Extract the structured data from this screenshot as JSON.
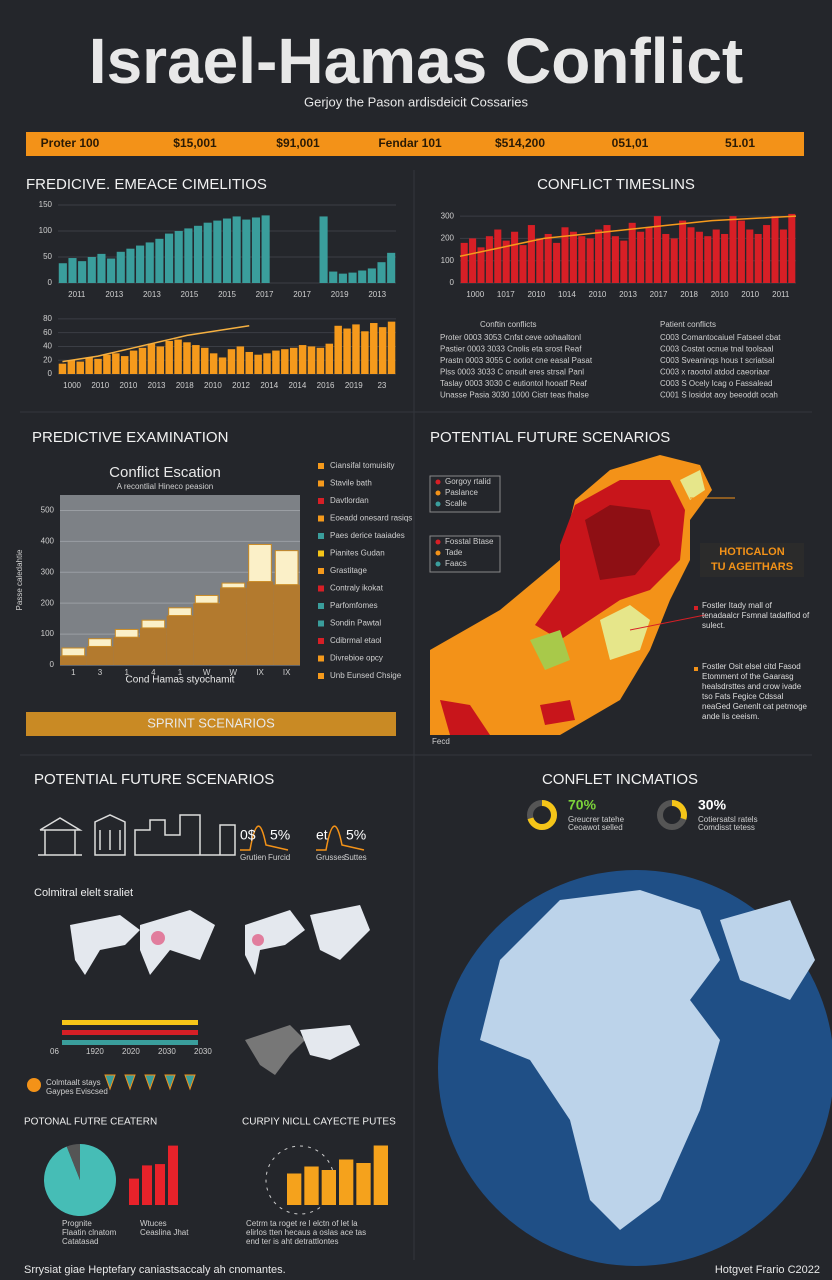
{
  "header": {
    "title": "Israel-Hamas Conflict",
    "subtitle": "Gerjoy the Pason ardisdeicit Cossaries"
  },
  "banner": [
    "Proter 100",
    "$15,001",
    "$91,001",
    "Fendar 101",
    "$514,200",
    "051,01",
    "51.01"
  ],
  "timeline_left": {
    "title": "FREDICIVE. EMEACE CIMELITIOS",
    "top_chart": {
      "type": "bar",
      "color": "#3a9e9c",
      "ylim": [
        0,
        150
      ],
      "yticks": [
        0,
        50,
        100,
        150
      ],
      "values": [
        38,
        48,
        42,
        50,
        56,
        47,
        60,
        66,
        72,
        78,
        85,
        95,
        100,
        105,
        110,
        116,
        120,
        124,
        128,
        122,
        126,
        130,
        null,
        null,
        null,
        null,
        null,
        128,
        22,
        18,
        20,
        24,
        28,
        40,
        58
      ],
      "xlabels": [
        "2011",
        "2013",
        "2013",
        "2015",
        "2015",
        "2017",
        "2017",
        "2019",
        "2013"
      ]
    },
    "bottom_chart": {
      "type": "bar",
      "color": "#f59a1c",
      "ylim": [
        0,
        90
      ],
      "yticks": [
        0,
        20,
        40,
        60,
        80
      ],
      "values": [
        15,
        20,
        18,
        24,
        22,
        28,
        30,
        26,
        34,
        38,
        44,
        40,
        48,
        50,
        46,
        42,
        38,
        30,
        24,
        36,
        40,
        32,
        28,
        30,
        34,
        36,
        38,
        42,
        40,
        38,
        44,
        70,
        66,
        72,
        62,
        74,
        68,
        76
      ],
      "trend": [
        18,
        20,
        22,
        24,
        26,
        29,
        32,
        35,
        38,
        41,
        44,
        47,
        50,
        53,
        56,
        58,
        60,
        62,
        64,
        66,
        68,
        70
      ],
      "trend_color": "#f5b041",
      "xlabels": [
        "1000",
        "2010",
        "2010",
        "2013",
        "2018",
        "2010",
        "2012",
        "2014",
        "2014",
        "2016",
        "2019",
        "23"
      ]
    }
  },
  "timeline_right": {
    "title": "CONFLICT TIMESLINS",
    "chart": {
      "type": "bar",
      "color": "#d71f26",
      "ylim": [
        0,
        350
      ],
      "yticks": [
        0,
        100,
        200,
        300
      ],
      "values": [
        180,
        200,
        160,
        210,
        240,
        190,
        230,
        170,
        260,
        200,
        220,
        180,
        250,
        230,
        210,
        200,
        240,
        260,
        210,
        190,
        270,
        230,
        250,
        300,
        220,
        200,
        280,
        250,
        230,
        210,
        240,
        220,
        300,
        280,
        240,
        220,
        260,
        300,
        240,
        310
      ],
      "trend": [
        120,
        160,
        200,
        220,
        240,
        260,
        280,
        290,
        300
      ],
      "trend_color": "#f59a1c",
      "xlabels": [
        "1000",
        "1017",
        "2010",
        "1014",
        "2010",
        "2013",
        "2017",
        "2018",
        "2010",
        "2010",
        "2011"
      ]
    },
    "tables": [
      {
        "title": "Conftin conflicts",
        "rows": [
          "Proter 0003 3053 Cnfst ceve oohaaltonl",
          "Pastier 0003 3033 Cnolis eta srost Reaf",
          "Prastn 0003 3055 C ootiot cne easal Pasat",
          "Plss 0003 3033 C onsult eres strsal Panl",
          "Taslay 0003 3030 C eutiontol hooatf Reaf",
          "Unasse Pasia 3030 1000 Cistr teas fhalse"
        ]
      },
      {
        "title": "Patient conflicts",
        "rows": [
          "C003 Comantocaiuel Fatseel cbat",
          "C003 Costat ocnue tnal toolsaal",
          "C003 Sveaninqs hous t scriatsal",
          "C003 x raootol atdod caeoriaar",
          "C003 S Ocely Icag o Fassalead",
          "C001 S losidot aoy beeoddt ocah"
        ]
      }
    ]
  },
  "examination": {
    "title": "PREDICTIVE EXAMINATION",
    "chart": {
      "type": "stacked-bar",
      "title": "Conflict Escation",
      "subtitle": "A recontlial Hineco peasion",
      "ylabel": "Passe caledahtie",
      "xlabel": "Cond Hamas styochamit",
      "ylim": [
        0,
        550
      ],
      "yticks": [
        0,
        100,
        200,
        300,
        400,
        500
      ],
      "categories": [
        "1",
        "3",
        "1",
        "4",
        "1",
        "W",
        "W",
        "IX",
        "IX"
      ],
      "base_values": [
        30,
        60,
        90,
        120,
        160,
        200,
        250,
        270,
        260
      ],
      "top_values": [
        25,
        25,
        25,
        25,
        25,
        25,
        15,
        120,
        110
      ],
      "base_color": "#b37a2e",
      "top_color": "#fbf0c8"
    },
    "legend": [
      {
        "text": "Ciansifal tomuisity",
        "color": "#f59a1c"
      },
      {
        "text": "Stavile bath",
        "color": "#f59a1c"
      },
      {
        "text": "Davtlordan",
        "color": "#d71f26"
      },
      {
        "text": "Eoeadd onesard rasiqs",
        "color": "#f59a1c"
      },
      {
        "text": "Paes derice taaiades",
        "color": "#3a9e9c"
      },
      {
        "text": "Pianites Gudan",
        "color": "#f5c518"
      },
      {
        "text": "Grastitage",
        "color": "#f59a1c"
      },
      {
        "text": "Contraly ikokat",
        "color": "#d71f26"
      },
      {
        "text": "Parfomfomes",
        "color": "#3a9e9c"
      },
      {
        "text": "Sondin Pawtal",
        "color": "#3a9e9c"
      },
      {
        "text": "Cdibrmal etaol",
        "color": "#d71f26"
      },
      {
        "text": "Divrebioe opcy",
        "color": "#f59a1c"
      },
      {
        "text": "Unb Eunsed Chsige",
        "color": "#f59a1c"
      }
    ],
    "button": "SPRINT SCENARIOS"
  },
  "scenarios_map": {
    "title": "POTENTIAL FUTURE SCENARIOS",
    "legend_a": [
      "Gorgoy rtalid",
      "Paslance",
      "Scalle"
    ],
    "legend_b": [
      "Fosstal Btase",
      "Tade",
      "Faacs"
    ],
    "callout": [
      "HOTICALON",
      "TU AGEITHARS"
    ],
    "notes": [
      "Fostler Itady mall of tenadaalcr Fsmnal tadalfiod of sulect.",
      "Fostler Osit elsel citd Fasod Etomment of the Gaarasg healsdrsttes and crow ivade tso Fats Fegice Cdssal neaGed Genenlt cat petmoge ande lis ceeism."
    ],
    "foot": "Fecd"
  },
  "scenarios_left": {
    "title": "POTENTIAL FUTURE SCENARIOS",
    "stats": [
      {
        "prefix": "0$",
        "text": "5%",
        "captions": [
          "Grutien",
          "Furcid"
        ]
      },
      {
        "prefix": "et",
        "text": "5%",
        "captions": [
          "Grusses",
          "Suttes"
        ]
      }
    ],
    "maps_title": "Colmitral elelt sraliet",
    "bars_labels": [
      "06",
      "1920",
      "2020",
      "2030",
      "2030"
    ],
    "icons_caption": [
      "Colmtaalt stays",
      "Gaypes Eviscsed"
    ],
    "pie_title": "POTONAL FUTRE CEATERN",
    "pie": {
      "values": [
        94,
        6
      ],
      "colors": [
        "#46bdb6",
        "#555"
      ]
    },
    "pie_captions": [
      "Prognite",
      "Flaatin clnatom",
      "Catatasad"
    ],
    "bars_caption": [
      "Wtuces",
      "Ceaslina Jhat"
    ],
    "red_bars": {
      "ylim": [
        0,
        100
      ],
      "values": [
        40,
        60,
        62,
        90
      ],
      "color": "#e8222a"
    },
    "mid_title": "CURPIY NICLL CAYECTE PUTES",
    "orange_bars": {
      "ylim": [
        0,
        100
      ],
      "values": [
        45,
        55,
        50,
        65,
        60,
        85
      ],
      "color": "#f5a21c"
    },
    "mid_caption": [
      "Cetrm ta roget re l elctn of let la",
      "elirlos tten hecaus a oslas ace tas",
      "end ter is aht detrattlontes"
    ]
  },
  "incidents": {
    "title": "CONFLET INCMATIOS",
    "donuts": [
      {
        "value": 70,
        "label": "70%",
        "color": "#f5c518",
        "label_color": "#7bd23a",
        "captions": [
          "Greucrer tatehe",
          "Ceoawot selled"
        ]
      },
      {
        "value": 30,
        "label": "30%",
        "color": "#f5c518",
        "label_color": "#ffffff",
        "captions": [
          "Cotiersatsl ratels",
          "Comdisst tetess"
        ]
      }
    ]
  },
  "footer": {
    "left": "Srrysiat giae Heptefary caniastsaccaly ah cnomantes.",
    "right": "Hotgvet Frario C2022"
  }
}
